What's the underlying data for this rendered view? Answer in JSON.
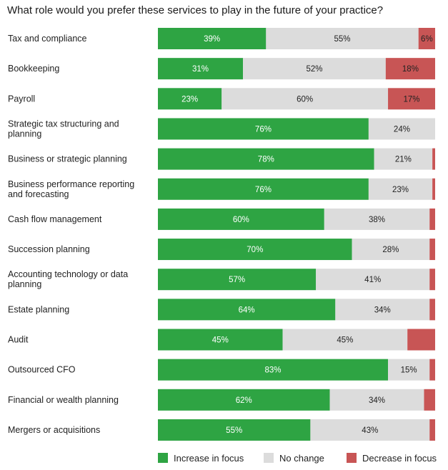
{
  "chart_data": {
    "type": "bar",
    "orientation": "horizontal",
    "stacked": true,
    "normalized": true,
    "title": "What role would you prefer these services to play in the future of your practice?",
    "categories": [
      [
        "Tax and compliance"
      ],
      [
        "Bookkeeping"
      ],
      [
        "Payroll"
      ],
      [
        "Strategic tax structuring and",
        "planning"
      ],
      [
        "Business or strategic planning"
      ],
      [
        "Business performance reporting",
        "and forecasting"
      ],
      [
        "Cash flow management"
      ],
      [
        "Succession planning"
      ],
      [
        "Accounting technology or data",
        "planning"
      ],
      [
        "Estate planning"
      ],
      [
        "Audit"
      ],
      [
        "Outsourced CFO"
      ],
      [
        "Financial or wealth planning"
      ],
      [
        "Mergers or acquisitions"
      ]
    ],
    "series": [
      {
        "name": "Increase in focus",
        "color": "#2ea443",
        "label_color": "#ffffff",
        "values": [
          39,
          31,
          23,
          76,
          78,
          76,
          60,
          70,
          57,
          64,
          45,
          83,
          62,
          55
        ],
        "labels": [
          "39%",
          "31%",
          "23%",
          "76%",
          "78%",
          "76%",
          "60%",
          "70%",
          "57%",
          "64%",
          "45%",
          "83%",
          "62%",
          "55%"
        ]
      },
      {
        "name": "No change",
        "color": "#dcdcdc",
        "label_color": "#222222",
        "values": [
          55,
          52,
          60,
          24,
          21,
          23,
          38,
          28,
          41,
          34,
          45,
          15,
          34,
          43
        ],
        "labels": [
          "55%",
          "52%",
          "60%",
          "24%",
          "21%",
          "23%",
          "38%",
          "28%",
          "41%",
          "34%",
          "45%",
          "15%",
          "34%",
          "43%"
        ]
      },
      {
        "name": "Decrease in focus",
        "color": "#c85555",
        "label_color": "#222222",
        "values": [
          6,
          18,
          17,
          0,
          1,
          1,
          2,
          2,
          2,
          2,
          10,
          2,
          4,
          2
        ],
        "labels": [
          "6%",
          "18%",
          "17%",
          "",
          "",
          "",
          "",
          "",
          "",
          "",
          "",
          "",
          "",
          ""
        ]
      }
    ],
    "xlim": [
      0,
      100
    ],
    "grid": false,
    "legend": "bottom"
  }
}
